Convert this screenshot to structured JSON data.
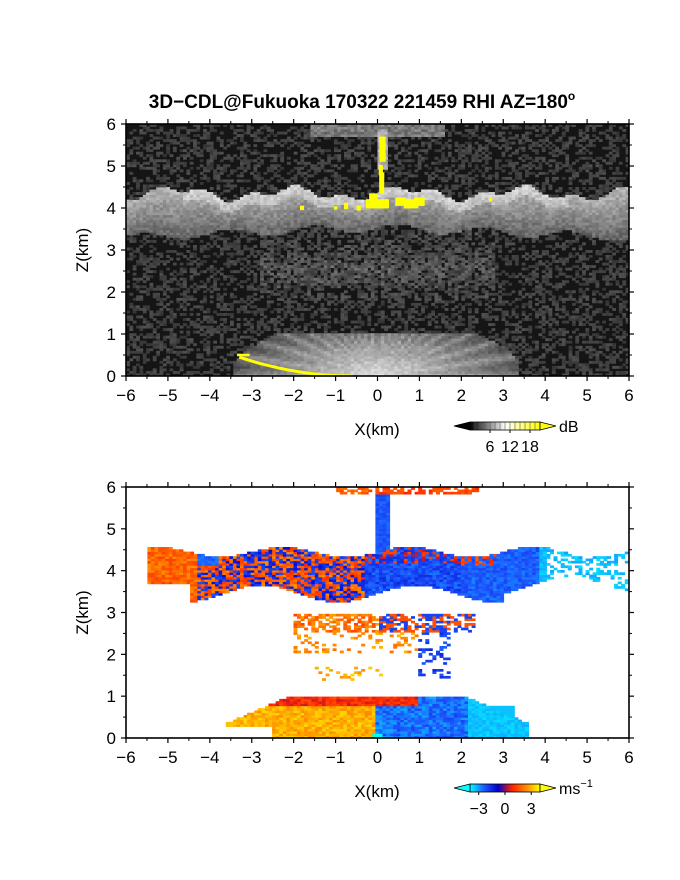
{
  "figure": {
    "title": "3D−CDL@Fukuoka 170322 221459 RHI AZ=180",
    "title_superscript": "o"
  },
  "chart_data": [
    {
      "type": "heatmap",
      "panel": "reflectivity",
      "xlabel": "X(km)",
      "ylabel": "Z(km)",
      "xlim": [
        -6,
        6
      ],
      "ylim": [
        0,
        6
      ],
      "x_ticks": [
        "−6",
        "−5",
        "−4",
        "−3",
        "−2",
        "−1",
        "0",
        "1",
        "2",
        "3",
        "4",
        "5",
        "6"
      ],
      "y_ticks": [
        "0",
        "1",
        "2",
        "3",
        "4",
        "5",
        "6"
      ],
      "colorbar": {
        "unit": "dB",
        "ticks": [
          "6",
          "12",
          "18"
        ],
        "tick_values": [
          6,
          12,
          18
        ],
        "range": [
          0,
          21
        ],
        "colors": [
          "#000000",
          "#ffffff",
          "#ffff00"
        ]
      },
      "features": [
        {
          "name": "cloud base layer",
          "z_range": [
            3.6,
            4.6
          ],
          "x_range": [
            -6,
            6
          ]
        },
        {
          "name": "strong echo (>18 dB)",
          "z_range": [
            3.9,
            5.8
          ],
          "x_center": 0.1
        },
        {
          "name": "boundary layer fan",
          "z_range": [
            0,
            1
          ],
          "x_range": [
            -3.3,
            3.3
          ]
        },
        {
          "name": "ground clutter line",
          "x_range": [
            -3.3,
            -0.6
          ],
          "z_range": [
            0,
            0.5
          ]
        }
      ],
      "grid": false
    },
    {
      "type": "heatmap",
      "panel": "doppler-velocity",
      "xlabel": "X(km)",
      "ylabel": "Z(km)",
      "xlim": [
        -6,
        6
      ],
      "ylim": [
        0,
        6
      ],
      "x_ticks": [
        "−6",
        "−5",
        "−4",
        "−3",
        "−2",
        "−1",
        "0",
        "1",
        "2",
        "3",
        "4",
        "5",
        "6"
      ],
      "y_ticks": [
        "0",
        "1",
        "2",
        "3",
        "4",
        "5",
        "6"
      ],
      "colorbar": {
        "unit": "ms",
        "unit_superscript": "−1",
        "ticks": [
          "−3",
          "0",
          "3"
        ],
        "tick_values": [
          -3,
          0,
          3
        ],
        "range": [
          -4,
          4
        ],
        "colors": [
          "#00ffff",
          "#1e5aff",
          "#0000cc",
          "#ff2200",
          "#ff8800",
          "#ffff00"
        ]
      },
      "features": [
        {
          "name": "cloud layer",
          "z_range": [
            3.4,
            4.6
          ],
          "x_range": [
            -5.4,
            6
          ],
          "note": "positive velocities left of x=0, negative right"
        },
        {
          "name": "vertical column",
          "x_center": 0.1,
          "z_range": [
            3.9,
            5.9
          ],
          "velocity_sign": "negative"
        },
        {
          "name": "mid-level echoes",
          "z_range": [
            1.4,
            2.9
          ],
          "x_range": [
            -2,
            3.7
          ]
        },
        {
          "name": "boundary layer",
          "z_range": [
            0,
            1
          ],
          "x_range": [
            -3.5,
            3.5
          ],
          "note": "positive velocities at x<0, negative at x>0"
        }
      ],
      "grid": false
    }
  ]
}
